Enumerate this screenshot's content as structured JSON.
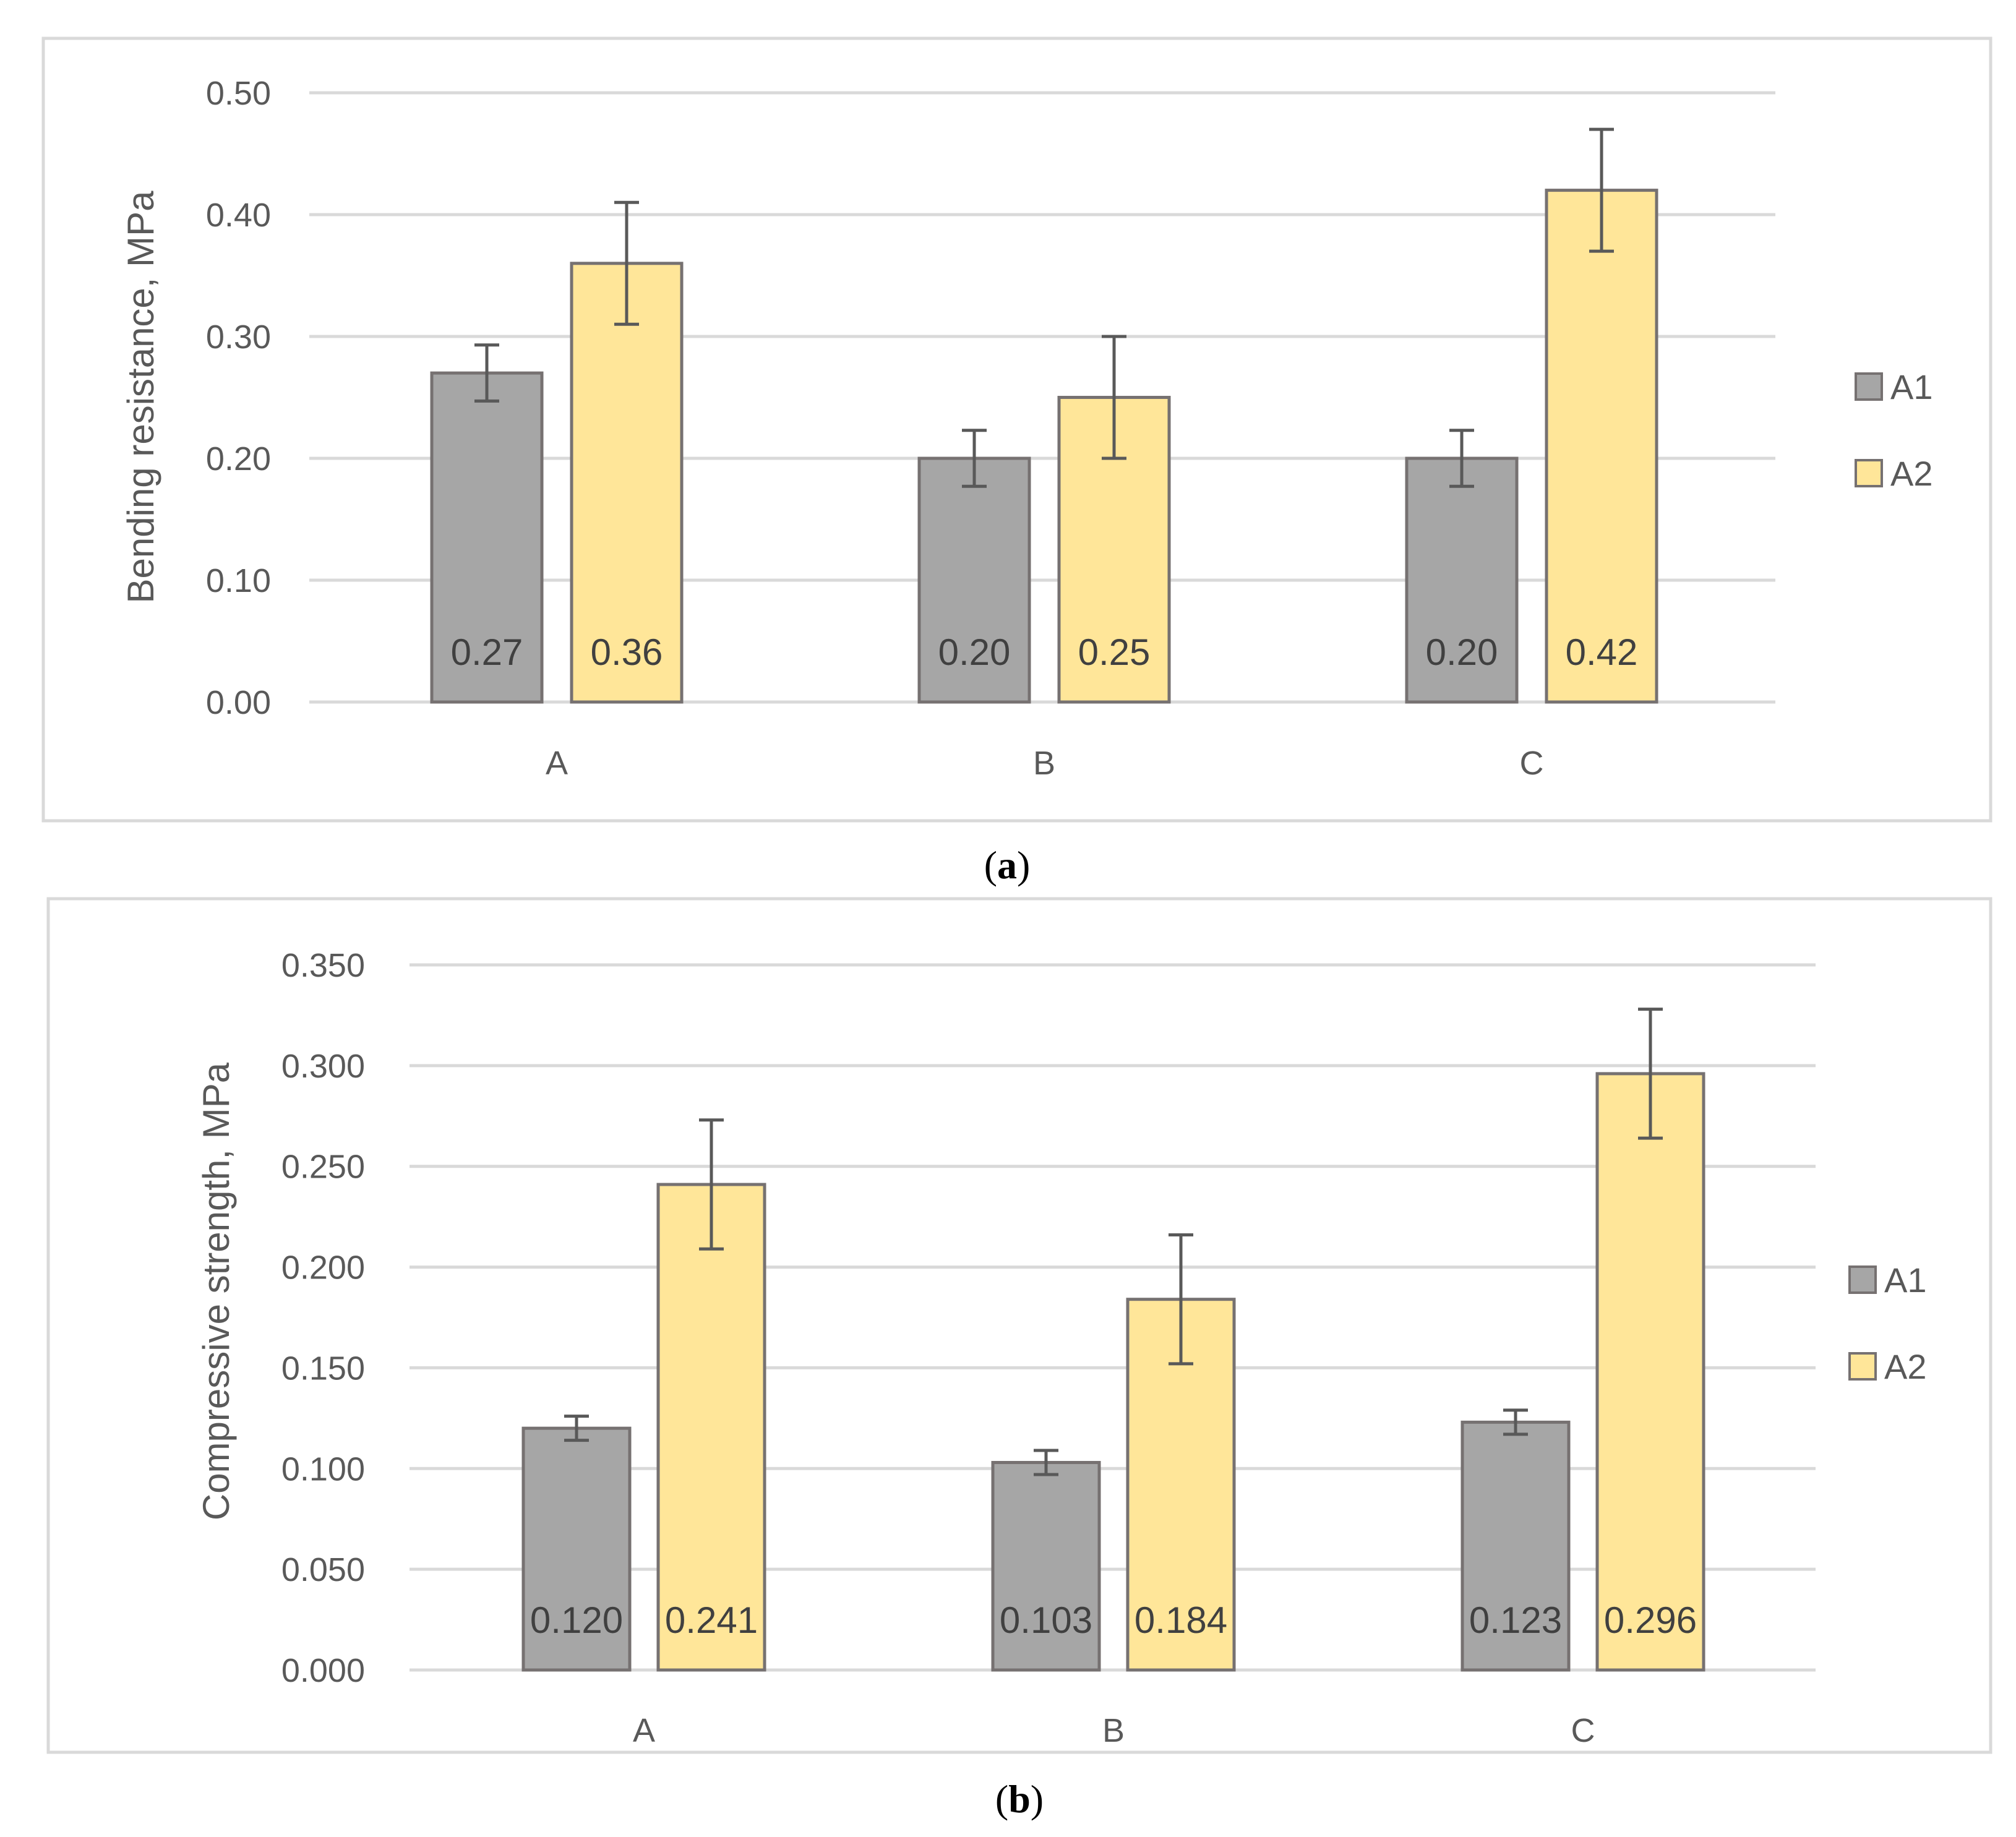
{
  "colors": {
    "A1": "#a6a6a6",
    "A2": "#ffe699",
    "border": "#767171",
    "grid": "#d9d9d9",
    "error": "#595959",
    "frame": "#d9d9d9"
  },
  "chart_data": [
    {
      "type": "bar",
      "panel": "a",
      "categories": [
        "A",
        "B",
        "C"
      ],
      "series": [
        {
          "name": "A1",
          "values": [
            0.27,
            0.2,
            0.2
          ],
          "errors": [
            0.023,
            0.023,
            0.023
          ],
          "labels": [
            "0.27",
            "0.20",
            "0.20"
          ]
        },
        {
          "name": "A2",
          "values": [
            0.36,
            0.25,
            0.42
          ],
          "errors": [
            0.05,
            0.05,
            0.05
          ],
          "labels": [
            "0.36",
            "0.25",
            "0.42"
          ]
        }
      ],
      "ylabel": "Bending resistance, MPa",
      "ylim": [
        0,
        0.5
      ],
      "yticks": [
        0,
        0.1,
        0.2,
        0.3,
        0.4,
        0.5
      ],
      "ytick_labels": [
        "0.00",
        "0.10",
        "0.20",
        "0.30",
        "0.40",
        "0.50"
      ],
      "legend": [
        "A1",
        "A2"
      ],
      "legend_position": "right",
      "grid": true
    },
    {
      "type": "bar",
      "panel": "b",
      "categories": [
        "A",
        "B",
        "C"
      ],
      "series": [
        {
          "name": "A1",
          "values": [
            0.12,
            0.103,
            0.123
          ],
          "errors": [
            0.006,
            0.006,
            0.006
          ],
          "labels": [
            "0.120",
            "0.103",
            "0.123"
          ]
        },
        {
          "name": "A2",
          "values": [
            0.241,
            0.184,
            0.296
          ],
          "errors": [
            0.032,
            0.032,
            0.032
          ],
          "labels": [
            "0.241",
            "0.184",
            "0.296"
          ]
        }
      ],
      "ylabel": "Compressive strength, MPa",
      "ylim": [
        0,
        0.35
      ],
      "yticks": [
        0,
        0.05,
        0.1,
        0.15,
        0.2,
        0.25,
        0.3,
        0.35
      ],
      "ytick_labels": [
        "0.000",
        "0.050",
        "0.100",
        "0.150",
        "0.200",
        "0.250",
        "0.300",
        "0.350"
      ],
      "legend": [
        "A1",
        "A2"
      ],
      "legend_position": "right",
      "grid": true
    }
  ],
  "captions": [
    {
      "open": "(",
      "letter": "a",
      "close": ")"
    },
    {
      "open": "(",
      "letter": "b",
      "close": ")"
    }
  ]
}
